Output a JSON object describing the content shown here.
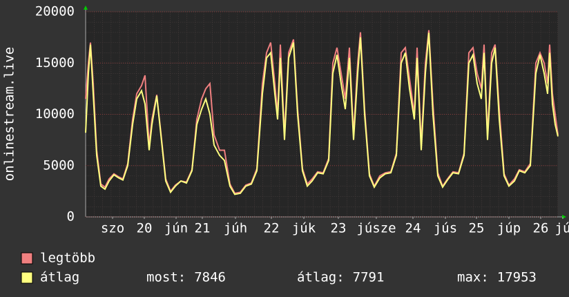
{
  "chart_data": {
    "type": "line",
    "y_label": "onlinestream.live",
    "xlim": [
      0,
      171
    ],
    "xticks": [
      {
        "value": 9.75,
        "label": "szo"
      },
      {
        "value": 21.25,
        "label": "20"
      },
      {
        "value": 32.75,
        "label": "jún"
      },
      {
        "value": 42.25,
        "label": "21"
      },
      {
        "value": 54.25,
        "label": "júh"
      },
      {
        "value": 67.25,
        "label": "22"
      },
      {
        "value": 79,
        "label": "júk"
      },
      {
        "value": 91.5,
        "label": "23"
      },
      {
        "value": 105.25,
        "label": "júsze"
      },
      {
        "value": 118.5,
        "label": "24"
      },
      {
        "value": 130.25,
        "label": "jús"
      },
      {
        "value": 141.5,
        "label": "25"
      },
      {
        "value": 153.25,
        "label": "júp"
      },
      {
        "value": 164.75,
        "label": "26"
      },
      {
        "value": 172.75,
        "label": "jú"
      }
    ],
    "ylim": [
      0,
      20000
    ],
    "yticks": [
      0,
      5000,
      10000,
      15000,
      20000
    ],
    "grid": true,
    "x": [
      0,
      1,
      1.75,
      2.75,
      4,
      5.5,
      7,
      8.5,
      10.25,
      12,
      13.5,
      15.25,
      17,
      18.5,
      20.25,
      21.5,
      23,
      24,
      25.75,
      27.25,
      29,
      30.75,
      32.5,
      34.5,
      36.5,
      38.5,
      40.25,
      42,
      43.5,
      45,
      46.5,
      48.5,
      50.25,
      52.25,
      54,
      56,
      58,
      60,
      62,
      64,
      65.5,
      67,
      68.5,
      69.5,
      70.5,
      72,
      73.5,
      75.25,
      76.75,
      78.5,
      80.25,
      82,
      84,
      86,
      88,
      89.5,
      91,
      92.5,
      94,
      95.5,
      97,
      98.5,
      99.5,
      101,
      102.75,
      104.5,
      106.5,
      108.5,
      110.5,
      112.5,
      114.25,
      115.75,
      117.25,
      119,
      120,
      121.5,
      123,
      124.25,
      125.75,
      127.5,
      129.25,
      131,
      133,
      135,
      137,
      138.75,
      140.25,
      141.75,
      143.25,
      144.25,
      145.5,
      147,
      148.25,
      149.75,
      151.5,
      153.25,
      155.25,
      157,
      159,
      161,
      163,
      164.5,
      166,
      167.25,
      168,
      169,
      170,
      171
    ],
    "series": [
      {
        "name": "legtöbb",
        "color": "#f08080",
        "values": [
          11500,
          15000,
          17000,
          13000,
          6500,
          3200,
          2900,
          3700,
          4200,
          3900,
          3700,
          5200,
          9500,
          12000,
          12800,
          13800,
          7000,
          9500,
          11900,
          8200,
          3700,
          2500,
          3100,
          3500,
          3400,
          4600,
          9500,
          11500,
          12500,
          13000,
          8000,
          6500,
          6500,
          3200,
          2300,
          2400,
          3100,
          3300,
          4700,
          13000,
          16000,
          17000,
          13000,
          10000,
          16800,
          8000,
          16000,
          17300,
          10500,
          4700,
          3200,
          3700,
          4400,
          4300,
          5700,
          15000,
          16500,
          14000,
          11500,
          16500,
          8000,
          15000,
          18000,
          10500,
          4200,
          3000,
          4000,
          4300,
          4400,
          6200,
          16000,
          16500,
          13500,
          10000,
          16500,
          7000,
          15000,
          18200,
          11000,
          4300,
          3000,
          3700,
          4400,
          4300,
          6200,
          16000,
          16500,
          14000,
          12500,
          16800,
          8000,
          16000,
          16800,
          10500,
          4200,
          3100,
          3700,
          4600,
          4400,
          5200,
          15000,
          16000,
          15000,
          13000,
          16800,
          12000,
          10000,
          8000
        ]
      },
      {
        "name": "átlag",
        "color": "#ffff80",
        "values": [
          8200,
          14000,
          16800,
          12000,
          6000,
          3000,
          2700,
          3500,
          4100,
          3800,
          3600,
          5000,
          9000,
          11500,
          12300,
          11000,
          6500,
          9000,
          11800,
          8000,
          3500,
          2400,
          3000,
          3500,
          3300,
          4500,
          9000,
          10500,
          11500,
          10000,
          7000,
          6000,
          5500,
          3000,
          2200,
          2300,
          3000,
          3200,
          4500,
          12000,
          15500,
          16000,
          12000,
          9500,
          15500,
          7500,
          15500,
          17000,
          10000,
          4500,
          3000,
          3500,
          4300,
          4200,
          5500,
          14000,
          15800,
          13000,
          10500,
          15500,
          7500,
          14000,
          17500,
          10000,
          4000,
          2900,
          3800,
          4200,
          4300,
          6000,
          15000,
          16000,
          12500,
          9500,
          15500,
          6500,
          14000,
          17953,
          10000,
          4000,
          2900,
          3600,
          4300,
          4200,
          6000,
          15000,
          15800,
          13000,
          11500,
          16000,
          7500,
          15000,
          16500,
          9500,
          4000,
          3000,
          3500,
          4500,
          4300,
          5000,
          14000,
          15800,
          14000,
          12000,
          16000,
          11000,
          9000,
          7846
        ]
      }
    ],
    "stats": [
      {
        "label": "most:",
        "value": 7846
      },
      {
        "label": "átlag:",
        "value": 7791
      },
      {
        "label": "max:",
        "value": 17953
      }
    ]
  }
}
